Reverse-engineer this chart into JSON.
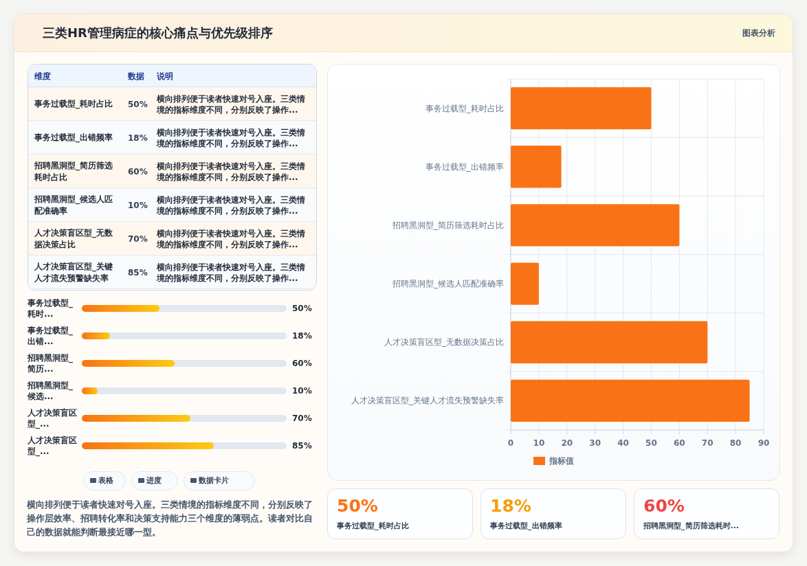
{
  "chart_data": [
    {
      "type": "other",
      "title": "三类HR管理病症的核心痛点与优先级排序",
      "categories": [
        "事务过载型_耗时占比",
        "事务过载型_出错频率",
        "招聘黑洞型_简历筛选耗时占比",
        "招聘黑洞型_候选人匹配准确率",
        "人才决策盲区型_无数据决策占比",
        "人才决策盲区型_关键人才流失预警缺失率"
      ],
      "value_labels": [
        "50%",
        "18%",
        "60%",
        "10%",
        "70%",
        "85%"
      ],
      "annotations": [
        "图表分析",
        "维度",
        "数据",
        "说明",
        "横向排列便于读者快速对号入座。三类情境的指标维度不同，分别反映了操作...",
        "横向排列便于读者快速对号入座。三类情境的指标维度不同，分别反映了操作...",
        "横向排列便于读者快速对号入座。三类情境的指标维度不同，分别反映了操作...",
        "横向排列便于读者快速对号入座。三类情境的指标维度不同，分别反映了操作...",
        "横向排列便于读者快速对号入座。三类情境的指标维度不同，分别反映了操作...",
        "横向排列便于读者快速对号入座。三类情境的指标维度不同，分别反映了操作..."
      ]
    },
    {
      "type": "bar",
      "orientation": "horizontal",
      "categories": [
        "事务过载型_耗时...",
        "事务过载型_出错...",
        "招聘黑洞型_简历...",
        "招聘黑洞型_候选...",
        "人才决策盲区型_...",
        "人才决策盲区型_..."
      ],
      "values": [
        50,
        18,
        60,
        10,
        70,
        85
      ],
      "value_labels": [
        "50%",
        "18%",
        "60%",
        "10%",
        "70%",
        "85%"
      ],
      "color": "#f97316",
      "xlim": [
        0,
        132
      ],
      "annotations": [
        "表格",
        "进度",
        "数据卡片",
        "横向排列便于读者快速对号入座。三类情境的指标维度不同，分别反映了操作层效率、招聘转化率和决策支持能力三个维度的薄弱点。读者对比自己的数据就能判断最接近哪一型。"
      ]
    },
    {
      "type": "bar",
      "orientation": "horizontal",
      "categories": [
        "事务过载型_耗时占比",
        "事务过载型_出错频率",
        "招聘黑洞型_简历筛选耗时占比",
        "招聘黑洞型_候选人匹配准确率",
        "人才决策盲区型_无数据决策占比",
        "人才决策盲区型_关键人才流失预警缺失率"
      ],
      "series": [
        {
          "name": "指标值",
          "color": "#f97316",
          "values": [
            50,
            18,
            60,
            10,
            70,
            85
          ]
        }
      ],
      "xlim": [
        0,
        90
      ],
      "xticks": [
        0,
        10,
        20,
        30,
        40,
        50,
        60,
        70,
        80,
        90
      ],
      "grid": true,
      "legend": "bottom"
    },
    {
      "type": "other",
      "categories": [
        "事务过载型_耗时占比",
        "事务过载型_出错频率",
        "招聘黑洞型_简历筛选耗时..."
      ],
      "value_labels": [
        "50%",
        "18%",
        "60%"
      ]
    }
  ]
}
